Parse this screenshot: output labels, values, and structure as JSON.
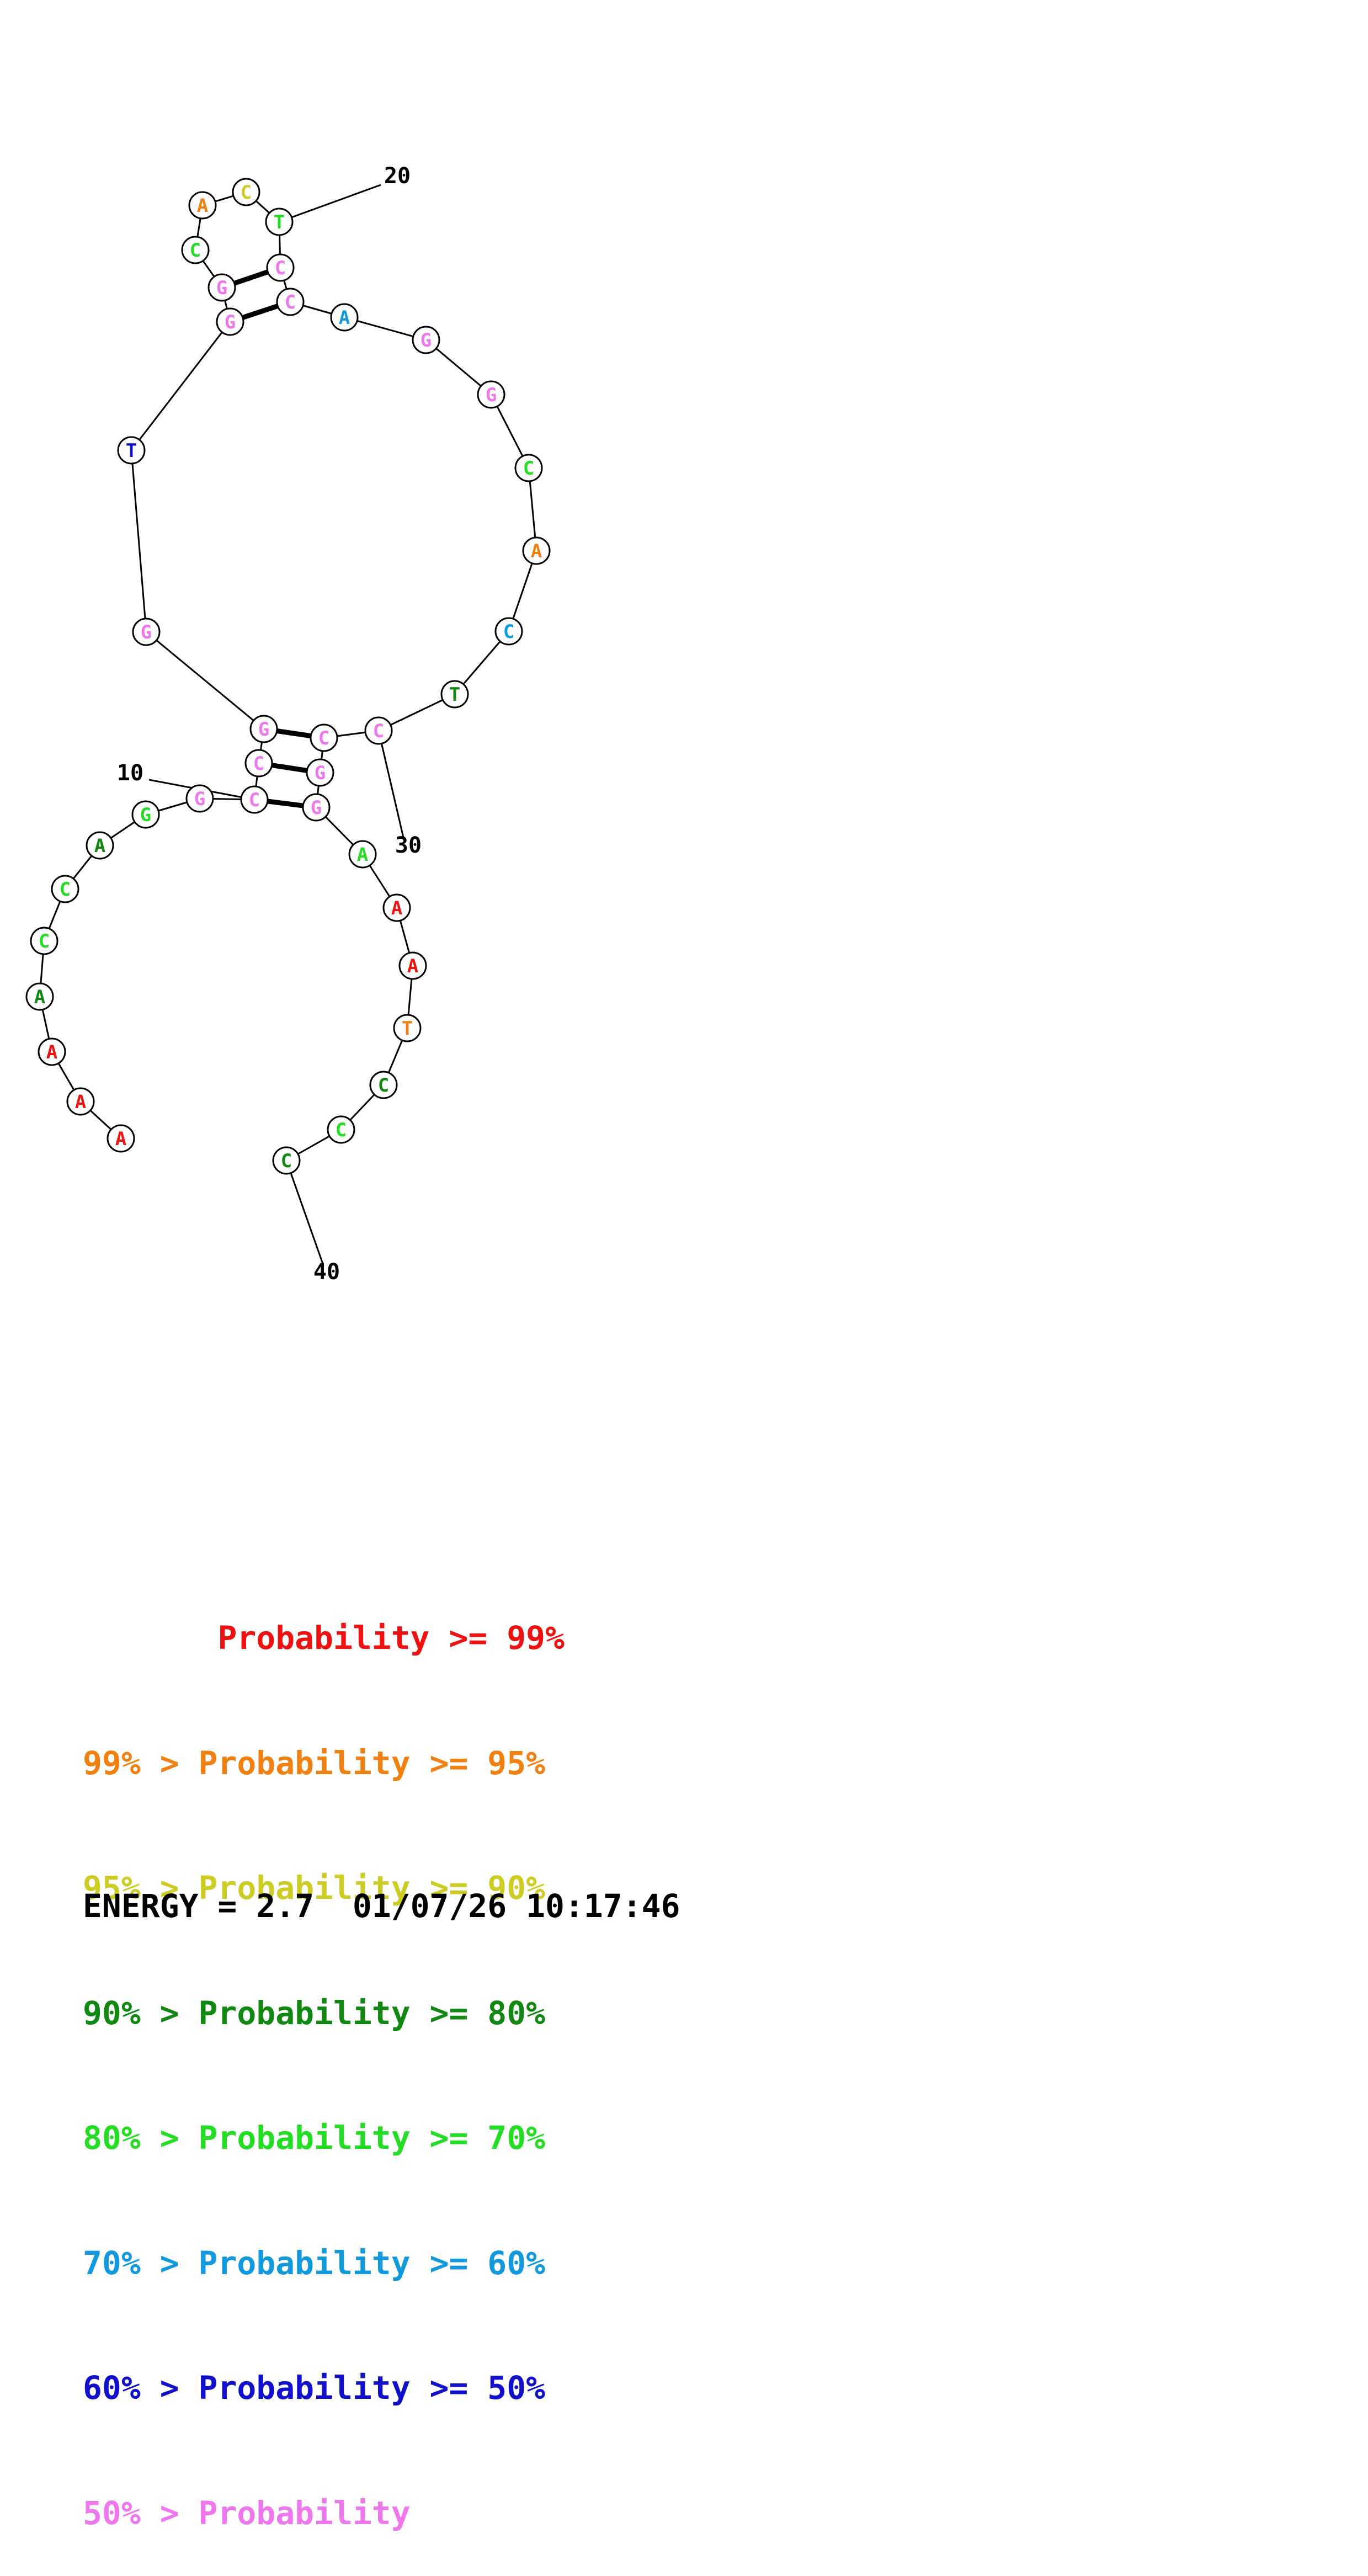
{
  "colors": {
    "red": "#ee1111",
    "orange": "#f08010",
    "yellow": "#cccc22",
    "dkgreen": "#118811",
    "green": "#22dd22",
    "cyan": "#1199dd",
    "blue": "#1111cc",
    "pink": "#ee77ee"
  },
  "nucleotides": [
    {
      "n": 1,
      "b": "A",
      "c": "red"
    },
    {
      "n": 2,
      "b": "A",
      "c": "red"
    },
    {
      "n": 3,
      "b": "A",
      "c": "red"
    },
    {
      "n": 4,
      "b": "A",
      "c": "dkgreen"
    },
    {
      "n": 5,
      "b": "C",
      "c": "green"
    },
    {
      "n": 6,
      "b": "C",
      "c": "green"
    },
    {
      "n": 7,
      "b": "A",
      "c": "dkgreen"
    },
    {
      "n": 8,
      "b": "G",
      "c": "green"
    },
    {
      "n": 9,
      "b": "G",
      "c": "pink"
    },
    {
      "n": 10,
      "b": "C",
      "c": "pink"
    },
    {
      "n": 11,
      "b": "C",
      "c": "pink"
    },
    {
      "n": 12,
      "b": "G",
      "c": "pink"
    },
    {
      "n": 13,
      "b": "G",
      "c": "pink"
    },
    {
      "n": 14,
      "b": "T",
      "c": "blue"
    },
    {
      "n": 15,
      "b": "G",
      "c": "pink"
    },
    {
      "n": 16,
      "b": "G",
      "c": "pink"
    },
    {
      "n": 17,
      "b": "C",
      "c": "green"
    },
    {
      "n": 18,
      "b": "A",
      "c": "orange"
    },
    {
      "n": 19,
      "b": "C",
      "c": "yellow"
    },
    {
      "n": 20,
      "b": "T",
      "c": "green"
    },
    {
      "n": 21,
      "b": "C",
      "c": "pink"
    },
    {
      "n": 22,
      "b": "C",
      "c": "pink"
    },
    {
      "n": 23,
      "b": "A",
      "c": "cyan"
    },
    {
      "n": 24,
      "b": "G",
      "c": "pink"
    },
    {
      "n": 25,
      "b": "G",
      "c": "pink"
    },
    {
      "n": 26,
      "b": "C",
      "c": "green"
    },
    {
      "n": 27,
      "b": "A",
      "c": "orange"
    },
    {
      "n": 28,
      "b": "C",
      "c": "cyan"
    },
    {
      "n": 29,
      "b": "T",
      "c": "dkgreen"
    },
    {
      "n": 30,
      "b": "C",
      "c": "pink"
    },
    {
      "n": 31,
      "b": "C",
      "c": "pink"
    },
    {
      "n": 32,
      "b": "G",
      "c": "pink"
    },
    {
      "n": 33,
      "b": "G",
      "c": "pink"
    },
    {
      "n": 34,
      "b": "A",
      "c": "green"
    },
    {
      "n": 35,
      "b": "A",
      "c": "red"
    },
    {
      "n": 36,
      "b": "A",
      "c": "red"
    },
    {
      "n": 37,
      "b": "T",
      "c": "orange"
    },
    {
      "n": 38,
      "b": "C",
      "c": "dkgreen"
    },
    {
      "n": 39,
      "b": "C",
      "c": "green"
    },
    {
      "n": 40,
      "b": "C",
      "c": "dkgreen"
    }
  ],
  "pairs": [
    [
      10,
      33
    ],
    [
      11,
      32
    ],
    [
      12,
      31
    ],
    [
      15,
      22
    ],
    [
      16,
      21
    ]
  ],
  "position_labels": [
    {
      "n": 10,
      "text": "10"
    },
    {
      "n": 20,
      "text": "20"
    },
    {
      "n": 30,
      "text": "30"
    },
    {
      "n": 40,
      "text": "40"
    }
  ],
  "legend": [
    {
      "prefix": "       ",
      "text": "Probability >= 99%",
      "color": "red"
    },
    {
      "prefix": "99% > ",
      "text": "Probability >= 95%",
      "color": "orange"
    },
    {
      "prefix": "95% > ",
      "text": "Probability >= 90%",
      "color": "yellow"
    },
    {
      "prefix": "90% > ",
      "text": "Probability >= 80%",
      "color": "dkgreen"
    },
    {
      "prefix": "80% > ",
      "text": "Probability >= 70%",
      "color": "green"
    },
    {
      "prefix": "70% > ",
      "text": "Probability >= 60%",
      "color": "cyan"
    },
    {
      "prefix": "60% > ",
      "text": "Probability >= 50%",
      "color": "blue"
    },
    {
      "prefix": "50% > ",
      "text": "Probability",
      "color": "pink"
    }
  ],
  "energy_line": "ENERGY = 2.7  01/07/26 10:17:46"
}
